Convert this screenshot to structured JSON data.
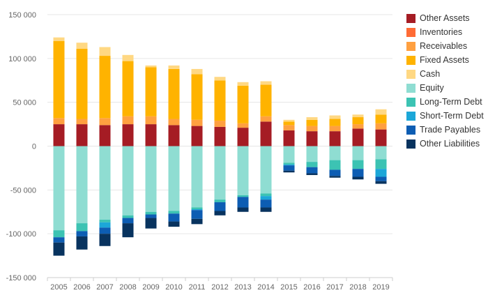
{
  "chart_data": {
    "type": "bar",
    "stacked": true,
    "categories": [
      "2005",
      "2006",
      "2007",
      "2008",
      "2009",
      "2010",
      "2011",
      "2012",
      "2013",
      "2014",
      "2015",
      "2016",
      "2017",
      "2018",
      "2019"
    ],
    "ylim": [
      -150000,
      150000
    ],
    "yticks": [
      150000,
      100000,
      50000,
      0,
      -50000,
      -100000,
      -150000
    ],
    "ytick_labels": [
      "150 000",
      "100 000",
      "50 000",
      "0",
      "-50 000",
      "-100 000",
      "-150 000"
    ],
    "grid": true,
    "legend_position": "right",
    "series": [
      {
        "name": "Other Assets",
        "color": "#a51c24",
        "values": [
          25000,
          25000,
          24000,
          25000,
          25000,
          24000,
          23000,
          22000,
          21000,
          28000,
          18000,
          17000,
          17000,
          20000,
          19000
        ]
      },
      {
        "name": "Inventories",
        "color": "#ff6b35",
        "values": [
          0,
          0,
          0,
          0,
          0,
          0,
          0,
          0,
          0,
          0,
          0,
          0,
          0,
          0,
          0
        ]
      },
      {
        "name": "Receivables",
        "color": "#ffa040",
        "values": [
          7000,
          6000,
          8000,
          9000,
          9000,
          7000,
          7000,
          7000,
          5000,
          6000,
          6000,
          6000,
          6000,
          5000,
          7000
        ]
      },
      {
        "name": "Fixed Assets",
        "color": "#ffb300",
        "values": [
          88000,
          80000,
          71000,
          63000,
          56000,
          57000,
          52000,
          46000,
          43000,
          36000,
          4000,
          7000,
          8000,
          8000,
          10000
        ]
      },
      {
        "name": "Cash",
        "color": "#ffd883",
        "values": [
          4000,
          7000,
          10000,
          7000,
          2000,
          4000,
          6000,
          4000,
          4000,
          4000,
          2000,
          3000,
          4000,
          3000,
          6000
        ]
      },
      {
        "name": "Equity",
        "color": "#8fddd2",
        "values": [
          -96000,
          -88000,
          -84000,
          -79000,
          -75000,
          -74000,
          -70000,
          -61000,
          -56000,
          -54000,
          -19000,
          -18000,
          -16000,
          -16000,
          -15000
        ]
      },
      {
        "name": "Long-Term Debt",
        "color": "#3cc3b3",
        "values": [
          -8000,
          -9000,
          -3000,
          -3000,
          -3000,
          -3000,
          -2000,
          -3000,
          -2000,
          -3000,
          -2000,
          -6000,
          -11000,
          -10000,
          -11000
        ]
      },
      {
        "name": "Short-Term Debt",
        "color": "#1ca7d8",
        "values": [
          0,
          0,
          -6000,
          0,
          0,
          0,
          -1000,
          0,
          0,
          -4000,
          -1000,
          0,
          0,
          0,
          -9000
        ]
      },
      {
        "name": "Trade Payables",
        "color": "#0d5db3",
        "values": [
          -6000,
          -6000,
          -7000,
          -6000,
          -4000,
          -9000,
          -10000,
          -10000,
          -12000,
          -9000,
          -6000,
          -7000,
          -7000,
          -9000,
          -5000
        ]
      },
      {
        "name": "Other Liabilities",
        "color": "#08335f",
        "values": [
          -15000,
          -15000,
          -14000,
          -16000,
          -12000,
          -6000,
          -6000,
          -5000,
          -5000,
          -5000,
          -2000,
          -2000,
          -2000,
          -3000,
          -3000
        ]
      }
    ]
  }
}
